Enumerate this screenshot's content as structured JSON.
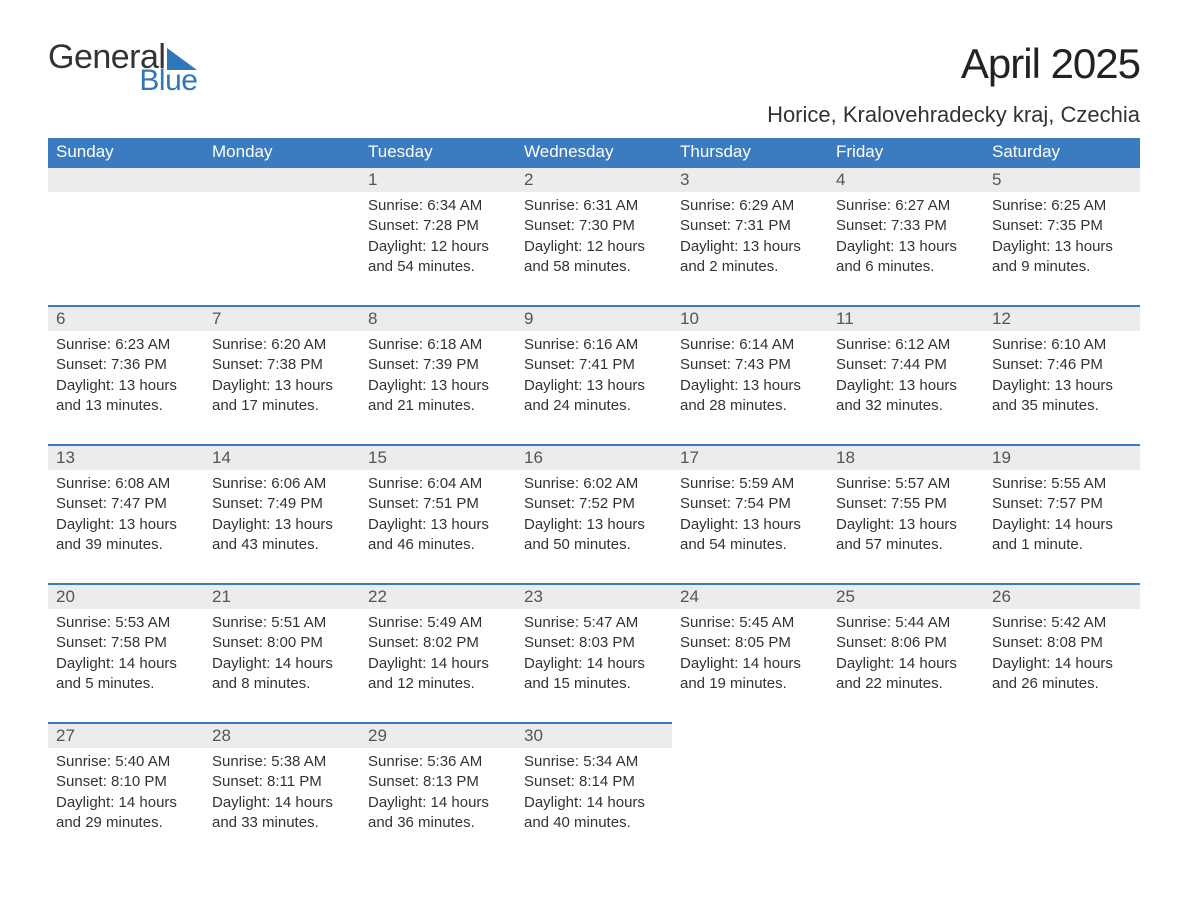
{
  "logo": {
    "text1": "General",
    "text2": "Blue"
  },
  "title": "April 2025",
  "location": "Horice, Kralovehradecky kraj, Czechia",
  "header_bg": "#3b7cc0",
  "accent_color": "#2f77b8",
  "daynum_bg": "#ececec",
  "columns": [
    "Sunday",
    "Monday",
    "Tuesday",
    "Wednesday",
    "Thursday",
    "Friday",
    "Saturday"
  ],
  "weeks": [
    [
      null,
      null,
      {
        "n": "1",
        "sr": "6:34 AM",
        "ss": "7:28 PM",
        "dl": "12 hours and 54 minutes."
      },
      {
        "n": "2",
        "sr": "6:31 AM",
        "ss": "7:30 PM",
        "dl": "12 hours and 58 minutes."
      },
      {
        "n": "3",
        "sr": "6:29 AM",
        "ss": "7:31 PM",
        "dl": "13 hours and 2 minutes."
      },
      {
        "n": "4",
        "sr": "6:27 AM",
        "ss": "7:33 PM",
        "dl": "13 hours and 6 minutes."
      },
      {
        "n": "5",
        "sr": "6:25 AM",
        "ss": "7:35 PM",
        "dl": "13 hours and 9 minutes."
      }
    ],
    [
      {
        "n": "6",
        "sr": "6:23 AM",
        "ss": "7:36 PM",
        "dl": "13 hours and 13 minutes."
      },
      {
        "n": "7",
        "sr": "6:20 AM",
        "ss": "7:38 PM",
        "dl": "13 hours and 17 minutes."
      },
      {
        "n": "8",
        "sr": "6:18 AM",
        "ss": "7:39 PM",
        "dl": "13 hours and 21 minutes."
      },
      {
        "n": "9",
        "sr": "6:16 AM",
        "ss": "7:41 PM",
        "dl": "13 hours and 24 minutes."
      },
      {
        "n": "10",
        "sr": "6:14 AM",
        "ss": "7:43 PM",
        "dl": "13 hours and 28 minutes."
      },
      {
        "n": "11",
        "sr": "6:12 AM",
        "ss": "7:44 PM",
        "dl": "13 hours and 32 minutes."
      },
      {
        "n": "12",
        "sr": "6:10 AM",
        "ss": "7:46 PM",
        "dl": "13 hours and 35 minutes."
      }
    ],
    [
      {
        "n": "13",
        "sr": "6:08 AM",
        "ss": "7:47 PM",
        "dl": "13 hours and 39 minutes."
      },
      {
        "n": "14",
        "sr": "6:06 AM",
        "ss": "7:49 PM",
        "dl": "13 hours and 43 minutes."
      },
      {
        "n": "15",
        "sr": "6:04 AM",
        "ss": "7:51 PM",
        "dl": "13 hours and 46 minutes."
      },
      {
        "n": "16",
        "sr": "6:02 AM",
        "ss": "7:52 PM",
        "dl": "13 hours and 50 minutes."
      },
      {
        "n": "17",
        "sr": "5:59 AM",
        "ss": "7:54 PM",
        "dl": "13 hours and 54 minutes."
      },
      {
        "n": "18",
        "sr": "5:57 AM",
        "ss": "7:55 PM",
        "dl": "13 hours and 57 minutes."
      },
      {
        "n": "19",
        "sr": "5:55 AM",
        "ss": "7:57 PM",
        "dl": "14 hours and 1 minute."
      }
    ],
    [
      {
        "n": "20",
        "sr": "5:53 AM",
        "ss": "7:58 PM",
        "dl": "14 hours and 5 minutes."
      },
      {
        "n": "21",
        "sr": "5:51 AM",
        "ss": "8:00 PM",
        "dl": "14 hours and 8 minutes."
      },
      {
        "n": "22",
        "sr": "5:49 AM",
        "ss": "8:02 PM",
        "dl": "14 hours and 12 minutes."
      },
      {
        "n": "23",
        "sr": "5:47 AM",
        "ss": "8:03 PM",
        "dl": "14 hours and 15 minutes."
      },
      {
        "n": "24",
        "sr": "5:45 AM",
        "ss": "8:05 PM",
        "dl": "14 hours and 19 minutes."
      },
      {
        "n": "25",
        "sr": "5:44 AM",
        "ss": "8:06 PM",
        "dl": "14 hours and 22 minutes."
      },
      {
        "n": "26",
        "sr": "5:42 AM",
        "ss": "8:08 PM",
        "dl": "14 hours and 26 minutes."
      }
    ],
    [
      {
        "n": "27",
        "sr": "5:40 AM",
        "ss": "8:10 PM",
        "dl": "14 hours and 29 minutes."
      },
      {
        "n": "28",
        "sr": "5:38 AM",
        "ss": "8:11 PM",
        "dl": "14 hours and 33 minutes."
      },
      {
        "n": "29",
        "sr": "5:36 AM",
        "ss": "8:13 PM",
        "dl": "14 hours and 36 minutes."
      },
      {
        "n": "30",
        "sr": "5:34 AM",
        "ss": "8:14 PM",
        "dl": "14 hours and 40 minutes."
      },
      null,
      null,
      null
    ]
  ],
  "labels": {
    "sunrise": "Sunrise: ",
    "sunset": "Sunset: ",
    "daylight": "Daylight: "
  }
}
